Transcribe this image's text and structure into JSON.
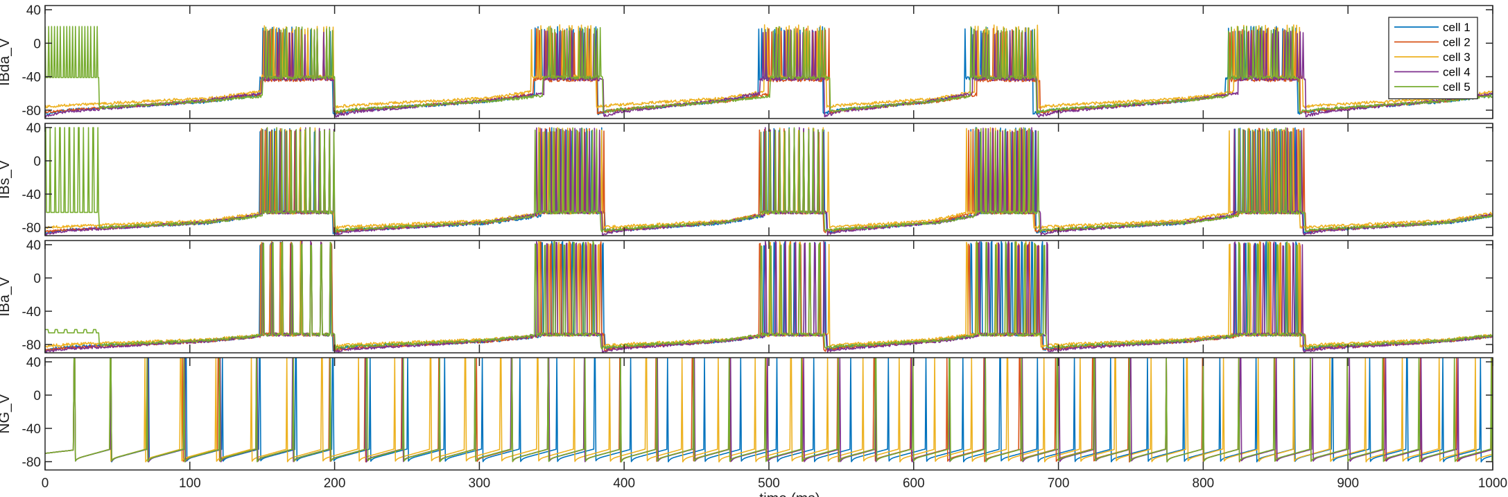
{
  "chart_data": [
    {
      "type": "line",
      "ylabel": "IBda_V",
      "ylim": [
        -90,
        45
      ],
      "yticks": [
        -80,
        -40,
        0,
        40
      ],
      "xlim": [
        0,
        1000
      ],
      "bursts": [
        [
          150,
          200
        ],
        [
          340,
          383
        ],
        [
          497,
          540
        ],
        [
          640,
          685
        ],
        [
          820,
          868
        ]
      ],
      "spike_period": 2.2,
      "init_burst": [
        0,
        35
      ],
      "series": [
        {
          "name": "cell 1",
          "color": "#0072BD",
          "baseline": [
            -84,
            -80,
            -70,
            -62
          ],
          "spike_low": -42,
          "spike_high": 20
        },
        {
          "name": "cell 2",
          "color": "#D95319",
          "baseline": [
            -83,
            -80,
            -69,
            -61
          ],
          "spike_low": -44,
          "spike_high": 18
        },
        {
          "name": "cell 3",
          "color": "#EDB120",
          "baseline": [
            -76,
            -74,
            -66,
            -58
          ],
          "spike_low": -40,
          "spike_high": 22
        },
        {
          "name": "cell 4",
          "color": "#7E2F8E",
          "baseline": [
            -87,
            -82,
            -68,
            -60
          ],
          "spike_low": -43,
          "spike_high": 16
        },
        {
          "name": "cell 5",
          "color": "#77AC30",
          "baseline": [
            -82,
            -79,
            -69,
            -63
          ],
          "spike_low": -41,
          "spike_high": 20
        }
      ]
    },
    {
      "type": "line",
      "ylabel": "IBs_V",
      "ylim": [
        -90,
        45
      ],
      "yticks": [
        -80,
        -40,
        0,
        40
      ],
      "xlim": [
        0,
        1000
      ],
      "bursts": [
        [
          150,
          200
        ],
        [
          340,
          385
        ],
        [
          497,
          540
        ],
        [
          640,
          685
        ],
        [
          820,
          868
        ]
      ],
      "spike_period": 3.2,
      "init_burst": [
        0,
        35
      ],
      "series": [
        {
          "name": "cell 1",
          "color": "#0072BD",
          "baseline": [
            -86,
            -83,
            -75,
            -66
          ],
          "spike_low": -62,
          "spike_high": 40
        },
        {
          "name": "cell 2",
          "color": "#D95319",
          "baseline": [
            -85,
            -83,
            -74,
            -65
          ],
          "spike_low": -62,
          "spike_high": 40
        },
        {
          "name": "cell 3",
          "color": "#EDB120",
          "baseline": [
            -80,
            -79,
            -72,
            -63
          ],
          "spike_low": -62,
          "spike_high": 40
        },
        {
          "name": "cell 4",
          "color": "#7E2F8E",
          "baseline": [
            -88,
            -84,
            -74,
            -65
          ],
          "spike_low": -62,
          "spike_high": 40
        },
        {
          "name": "cell 5",
          "color": "#77AC30",
          "baseline": [
            -84,
            -82,
            -74,
            -66
          ],
          "spike_low": -62,
          "spike_high": 40
        }
      ]
    },
    {
      "type": "line",
      "ylabel": "IBa_V",
      "ylim": [
        -90,
        45
      ],
      "yticks": [
        -80,
        -40,
        0,
        40
      ],
      "xlim": [
        0,
        1000
      ],
      "bursts": [
        [
          150,
          200
        ],
        [
          340,
          385
        ],
        [
          497,
          540
        ],
        [
          640,
          690
        ],
        [
          820,
          868
        ]
      ],
      "spike_period": 6.5,
      "init_burst": [
        0,
        35
      ],
      "series": [
        {
          "name": "cell 1",
          "color": "#0072BD",
          "baseline": [
            -86,
            -83,
            -76,
            -70
          ],
          "spike_low": -68,
          "spike_high": 44
        },
        {
          "name": "cell 2",
          "color": "#D95319",
          "baseline": [
            -87,
            -84,
            -76,
            -70
          ],
          "spike_low": -68,
          "spike_high": 44
        },
        {
          "name": "cell 3",
          "color": "#EDB120",
          "baseline": [
            -82,
            -80,
            -74,
            -69
          ],
          "spike_low": -68,
          "spike_high": 44
        },
        {
          "name": "cell 4",
          "color": "#7E2F8E",
          "baseline": [
            -88,
            -85,
            -76,
            -70
          ],
          "spike_low": -68,
          "spike_high": 44
        },
        {
          "name": "cell 5",
          "color": "#77AC30",
          "baseline": [
            -84,
            -82,
            -75,
            -69
          ],
          "spike_low": -68,
          "spike_high": 44
        }
      ]
    },
    {
      "type": "line",
      "ylabel": "NG_V",
      "ylim": [
        -90,
        45
      ],
      "yticks": [
        -80,
        -40,
        0,
        40
      ],
      "xlim": [
        0,
        1000
      ],
      "xticks": [
        0,
        100,
        200,
        300,
        400,
        500,
        600,
        700,
        800,
        900,
        1000
      ],
      "xlabel": "time (ms)",
      "series": [
        {
          "name": "cell 1",
          "color": "#0072BD",
          "first_spike": 20,
          "period": 25.6,
          "baseline": -77,
          "peak": 44
        },
        {
          "name": "cell 2",
          "color": "#D95319",
          "first_spike": 20,
          "period": 25.3,
          "baseline": -77,
          "peak": 44
        },
        {
          "name": "cell 3",
          "color": "#EDB120",
          "first_spike": 20,
          "period": 24.8,
          "baseline": -77,
          "peak": 44
        },
        {
          "name": "cell 4",
          "color": "#7E2F8E",
          "first_spike": 20,
          "period": 25.2,
          "baseline": -77,
          "peak": 44
        },
        {
          "name": "cell 5",
          "color": "#77AC30",
          "first_spike": 20,
          "period": 25.0,
          "baseline": -77,
          "peak": 44
        }
      ]
    }
  ],
  "legend": {
    "entries": [
      "cell 1",
      "cell 2",
      "cell 3",
      "cell 4",
      "cell 5"
    ],
    "colors": [
      "#0072BD",
      "#D95319",
      "#EDB120",
      "#7E2F8E",
      "#77AC30"
    ],
    "location": "top-right"
  }
}
